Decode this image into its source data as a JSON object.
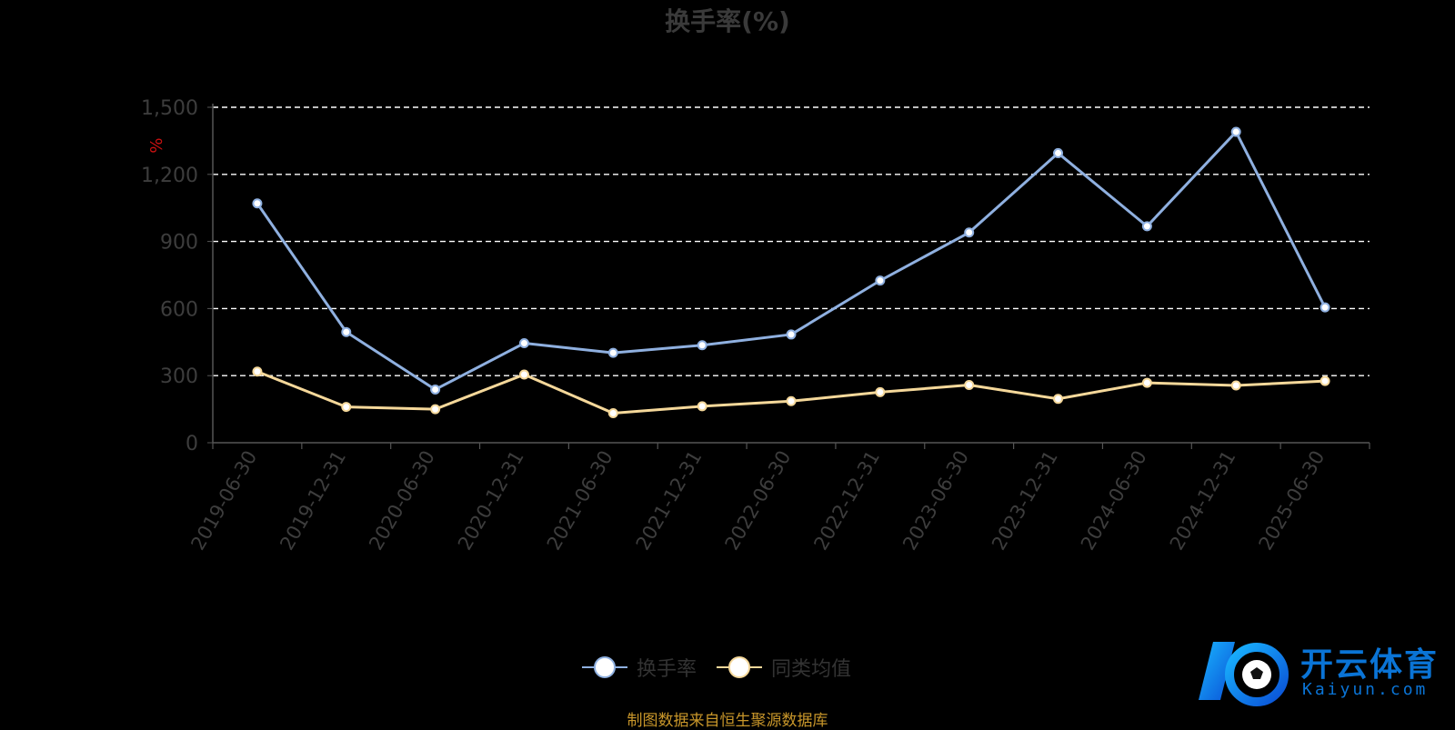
{
  "title": "换手率(%)",
  "source_note": "制图数据来自恒生聚源数据库",
  "logo": {
    "name": "开云体育",
    "url_text": "Kaiyun.com"
  },
  "chart_data": {
    "type": "line",
    "title": "换手率(%)",
    "ylabel": "%",
    "ylim": [
      0,
      1500
    ],
    "yticks": [
      0,
      300,
      600,
      900,
      1200,
      1500
    ],
    "ytick_labels": [
      "0",
      "300",
      "600",
      "900",
      "1,200",
      "1,500"
    ],
    "grid": true,
    "legend_position": "bottom-center",
    "categories": [
      "2019-06-30",
      "2019-12-31",
      "2020-06-30",
      "2020-12-31",
      "2021-06-30",
      "2021-12-31",
      "2022-06-30",
      "2022-12-31",
      "2023-06-30",
      "2023-12-31",
      "2024-06-30",
      "2024-12-31",
      "2025-06-30"
    ],
    "series": [
      {
        "name": "换手率",
        "color": "#8fb0e0",
        "values": [
          1070,
          495,
          238,
          445,
          402,
          436,
          484,
          725,
          940,
          1295,
          968,
          1390,
          605
        ]
      },
      {
        "name": "同类均值",
        "color": "#f5d89a",
        "values": [
          318,
          160,
          150,
          305,
          132,
          163,
          186,
          226,
          258,
          196,
          268,
          256,
          276
        ]
      }
    ]
  }
}
